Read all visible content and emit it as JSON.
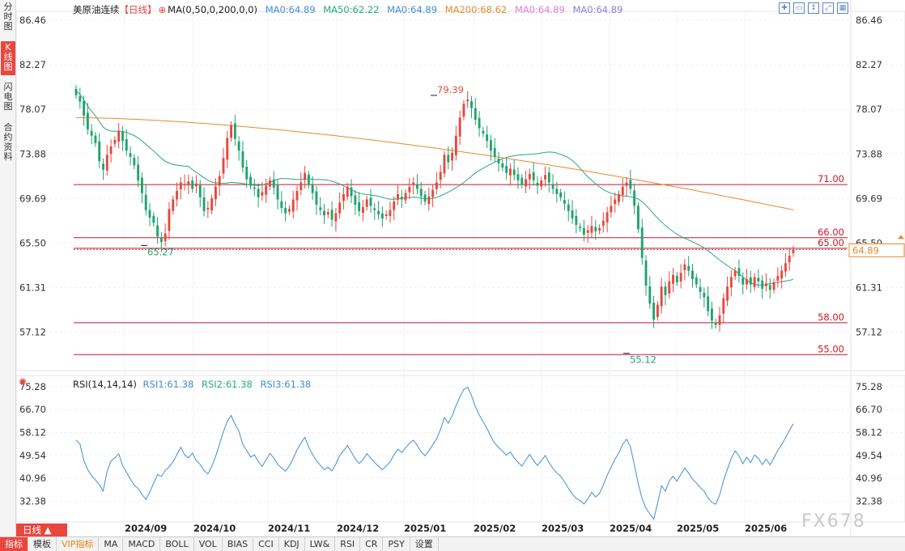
{
  "left_tabs": [
    "分时图",
    "K线图",
    "闪电图",
    "合约资料"
  ],
  "legend": {
    "symbol": "美原油连续",
    "period": "【日线】",
    "ma_params": "MA(0,50,0,200,0,0)",
    "items": [
      {
        "text": "MA0:64.89",
        "color": "#3f8fd8"
      },
      {
        "text": "MA50:62.22",
        "color": "#29a882"
      },
      {
        "text": "MA0:64.89",
        "color": "#3f8fd8"
      },
      {
        "text": "MA200:68.62",
        "color": "#e8892a"
      },
      {
        "text": "MA0:64.89",
        "color": "#e57ccf"
      },
      {
        "text": "MA0:64.89",
        "color": "#8a7fe0"
      }
    ]
  },
  "rsi_legend": {
    "params": "RSI(14,14,14)",
    "items": [
      {
        "text": "RSI1:61.38",
        "color": "#3f8fd8"
      },
      {
        "text": "RSI2:61.38",
        "color": "#29a882"
      },
      {
        "text": "RSI3:61.38",
        "color": "#3f8fd8"
      }
    ]
  },
  "toolbar_icons": [
    "zoom-in-icon",
    "zoom-out-icon",
    "fit-icon",
    "restore-icon",
    "grid-icon"
  ],
  "colors": {
    "up": "#e8473e",
    "down": "#1fa36f",
    "ma50": "#29a882",
    "ma200": "#e8892a",
    "rsi": "#3f8fd8",
    "hline": "#c8182a"
  },
  "chart_data": {
    "type": "candlestick",
    "price_axis": {
      "ticks": [
        "86.46",
        "82.27",
        "78.07",
        "73.88",
        "69.69",
        "65.50",
        "61.31",
        "57.12"
      ],
      "range": [
        53.5,
        87.3
      ]
    },
    "rsi_axis": {
      "ticks": [
        "75.28",
        "66.70",
        "58.12",
        "49.54",
        "40.96",
        "32.38"
      ],
      "range": [
        24.6,
        79.5
      ]
    },
    "x_labels": [
      "2024/09",
      "2024/10",
      "2024/11",
      "2024/12",
      "2025/01",
      "2025/02",
      "2025/03",
      "2025/04",
      "2025/05",
      "2025/06"
    ],
    "horizontal_lines": [
      {
        "value": 71.0,
        "label": "71.00"
      },
      {
        "value": 66.0,
        "label": "66.00"
      },
      {
        "value": 65.0,
        "label": "65.00"
      },
      {
        "value": 58.0,
        "label": "58.00"
      },
      {
        "value": 55.0,
        "label": "55.00"
      }
    ],
    "current_price": {
      "value": 64.89,
      "label": "64.89"
    },
    "annotations": [
      {
        "text": "79.39",
        "value": 79.39
      },
      {
        "text": "65.27",
        "value": 65.27
      },
      {
        "text": "55.12",
        "value": 55.12
      }
    ],
    "close_series": [
      79.4,
      78.8,
      77.5,
      76.2,
      75.6,
      74.9,
      73.2,
      72.4,
      73.8,
      74.6,
      75.2,
      76.0,
      75.1,
      74.2,
      73.6,
      72.8,
      71.4,
      70.2,
      68.6,
      67.9,
      67.4,
      66.1,
      65.6,
      66.4,
      68.7,
      69.6,
      70.4,
      71.2,
      71.0,
      71.3,
      70.6,
      71.1,
      69.8,
      68.5,
      68.8,
      69.7,
      70.8,
      71.8,
      73.5,
      75.4,
      76.6,
      75.3,
      74.2,
      72.6,
      71.5,
      70.9,
      70.6,
      69.8,
      70.3,
      70.9,
      71.4,
      70.7,
      69.6,
      68.8,
      68.3,
      68.7,
      69.6,
      70.4,
      71.2,
      72.1,
      71.0,
      70.2,
      69.1,
      68.6,
      68.1,
      68.4,
      67.7,
      68.3,
      69.3,
      70.1,
      70.8,
      69.9,
      69.1,
      68.5,
      68.9,
      69.6,
      69.0,
      68.6,
      68.2,
      67.8,
      68.2,
      68.6,
      69.4,
      70.1,
      69.6,
      70.2,
      70.8,
      71.2,
      70.6,
      69.9,
      69.4,
      69.9,
      70.5,
      71.2,
      72.2,
      73.8,
      73.1,
      74.0,
      75.6,
      77.3,
      78.6,
      79.0,
      78.2,
      77.1,
      76.3,
      75.8,
      75.1,
      74.2,
      73.6,
      73.0,
      72.6,
      72.1,
      72.5,
      71.9,
      71.4,
      71.0,
      71.5,
      72.0,
      71.4,
      70.9,
      71.4,
      71.9,
      71.2,
      70.6,
      70.1,
      69.8,
      69.2,
      68.5,
      67.8,
      67.2,
      66.9,
      66.3,
      66.7,
      67.1,
      66.6,
      66.9,
      67.6,
      68.4,
      69.0,
      69.6,
      70.1,
      70.8,
      71.2,
      70.6,
      69.0,
      66.8,
      64.1,
      61.5,
      59.8,
      58.3,
      59.7,
      61.4,
      60.6,
      61.9,
      62.5,
      61.8,
      62.7,
      63.5,
      62.9,
      62.1,
      61.6,
      60.9,
      60.4,
      59.1,
      58.2,
      57.8,
      58.7,
      60.3,
      61.4,
      62.3,
      62.9,
      62.4,
      61.6,
      62.1,
      61.6,
      62.3,
      61.9,
      61.2,
      61.7,
      61.1,
      61.8,
      62.4,
      62.9,
      63.6,
      64.3,
      64.89
    ],
    "rsi_series": [
      55.2,
      53.8,
      47.6,
      44.2,
      41.9,
      40.3,
      38.5,
      36.2,
      43.5,
      47.4,
      48.6,
      50.1,
      45.7,
      43.2,
      40.6,
      38.4,
      37.1,
      34.9,
      33.0,
      35.7,
      39.1,
      42.4,
      41.6,
      43.9,
      45.2,
      47.1,
      49.8,
      52.6,
      49.7,
      48.6,
      50.4,
      47.6,
      46.1,
      43.9,
      42.6,
      45.4,
      49.1,
      53.8,
      58.4,
      62.3,
      64.5,
      61.2,
      58.6,
      53.6,
      51.4,
      48.9,
      49.7,
      47.2,
      45.4,
      47.9,
      50.3,
      48.6,
      46.2,
      44.8,
      43.6,
      45.5,
      48.4,
      51.6,
      54.1,
      56.3,
      52.6,
      49.9,
      47.6,
      45.8,
      44.2,
      45.1,
      43.7,
      46.3,
      49.5,
      51.3,
      53.2,
      50.8,
      48.3,
      46.5,
      47.9,
      50.2,
      48.5,
      46.9,
      45.4,
      44.1,
      45.6,
      47.1,
      49.7,
      51.8,
      50.6,
      52.4,
      54.1,
      55.2,
      53.3,
      50.9,
      49.4,
      51.2,
      53.5,
      55.8,
      59.2,
      63.7,
      61.6,
      64.4,
      68.2,
      71.4,
      74.2,
      75.1,
      71.9,
      67.8,
      64.6,
      62.1,
      59.6,
      56.6,
      54.1,
      52.5,
      51.1,
      49.6,
      50.8,
      48.6,
      46.9,
      45.5,
      47.8,
      49.9,
      47.6,
      45.7,
      47.5,
      49.5,
      46.8,
      44.6,
      42.9,
      41.7,
      39.6,
      37.2,
      35.1,
      33.4,
      32.6,
      31.3,
      33.2,
      35.7,
      33.9,
      35.2,
      38.4,
      42.1,
      45.0,
      48.1,
      50.5,
      53.7,
      55.6,
      52.6,
      46.1,
      39.0,
      33.3,
      29.7,
      27.6,
      25.6,
      31.6,
      38.2,
      36.1,
      39.9,
      41.7,
      39.8,
      42.4,
      44.8,
      42.9,
      40.6,
      39.2,
      37.4,
      36.2,
      33.6,
      31.9,
      31.2,
      34.6,
      40.1,
      44.3,
      48.5,
      51.2,
      49.3,
      46.4,
      48.9,
      46.8,
      49.7,
      48.4,
      46.1,
      48.1,
      46.0,
      48.6,
      51.4,
      53.5,
      56.1,
      58.9,
      61.38
    ]
  }
}
